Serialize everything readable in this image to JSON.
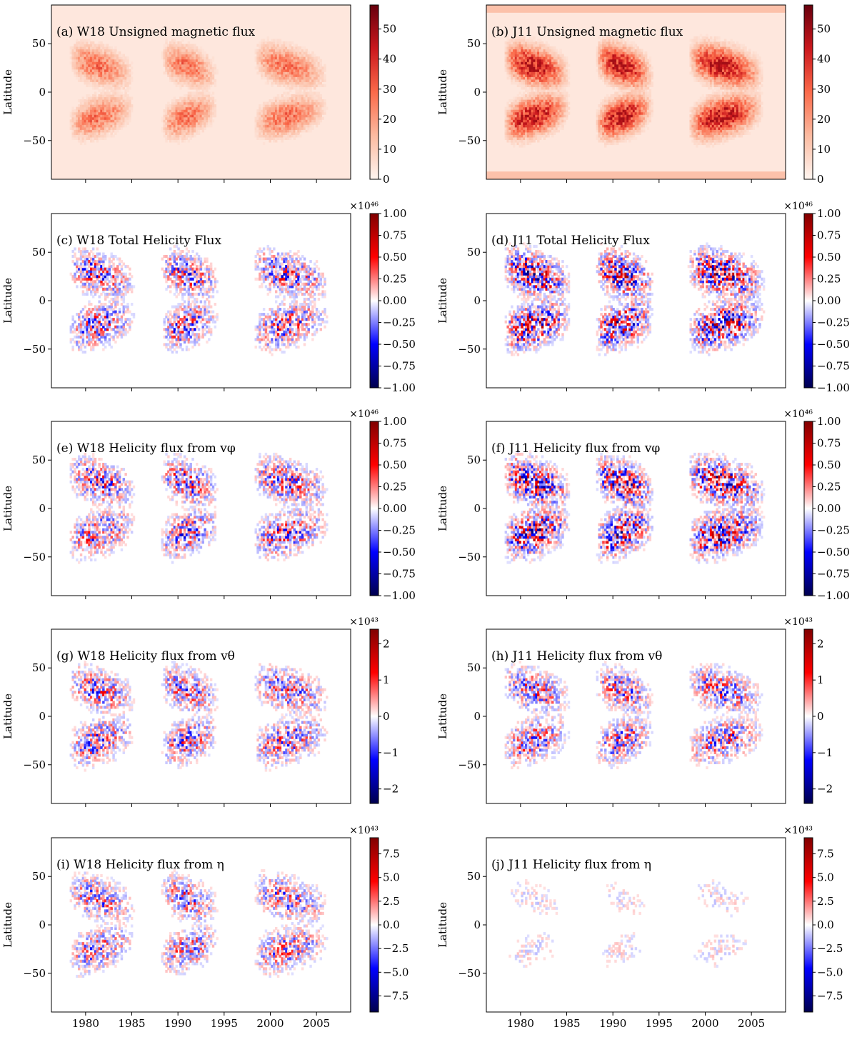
{
  "chart_data": {
    "type": "heatmap",
    "x_ticks": [
      1980,
      1985,
      1990,
      1995,
      2000,
      2005
    ],
    "xlim": [
      1976.3,
      2008.7
    ],
    "y_ticks": [
      50,
      0,
      -50
    ],
    "y_tick_labels": [
      "50",
      "0",
      "−50"
    ],
    "ylim": [
      -90,
      90
    ],
    "ylabel": "Latitude",
    "cycles": [
      {
        "start": 1978.0,
        "end": 1985.5
      },
      {
        "start": 1988.0,
        "end": 1994.5
      },
      {
        "start": 1998.0,
        "end": 2006.5
      }
    ],
    "panels": [
      {
        "id": "a",
        "model": "W18",
        "title": "(a) W18 Unsigned magnetic flux",
        "colormap": "reds",
        "clim": [
          0,
          58
        ],
        "multiplier": "",
        "cbar_ticks": [
          0,
          10,
          20,
          30,
          40,
          50
        ],
        "cbar_tick_labels": [
          "0",
          "10",
          "20",
          "30",
          "40",
          "50"
        ]
      },
      {
        "id": "b",
        "model": "J11",
        "title": "(b) J11 Unsigned magnetic flux",
        "colormap": "reds",
        "clim": [
          0,
          58
        ],
        "multiplier": "",
        "cbar_ticks": [
          0,
          10,
          20,
          30,
          40,
          50
        ],
        "cbar_tick_labels": [
          "0",
          "10",
          "20",
          "30",
          "40",
          "50"
        ]
      },
      {
        "id": "c",
        "model": "W18",
        "title": "(c) W18 Total Helicity Flux",
        "colormap": "seismic",
        "clim": [
          -1,
          1
        ],
        "multiplier": "×10⁴⁶",
        "cbar_ticks": [
          1,
          0.75,
          0.5,
          0.25,
          0,
          -0.25,
          -0.5,
          -0.75,
          -1
        ],
        "cbar_tick_labels": [
          "1.00",
          "0.75",
          "0.50",
          "0.25",
          "0.00",
          "−0.25",
          "−0.50",
          "−0.75",
          "−1.00"
        ]
      },
      {
        "id": "d",
        "model": "J11",
        "title": "(d) J11 Total Helicity Flux",
        "colormap": "seismic",
        "clim": [
          -1,
          1
        ],
        "multiplier": "×10⁴⁶",
        "cbar_ticks": [
          1,
          0.75,
          0.5,
          0.25,
          0,
          -0.25,
          -0.5,
          -0.75,
          -1
        ],
        "cbar_tick_labels": [
          "1.00",
          "0.75",
          "0.50",
          "0.25",
          "0.00",
          "−0.25",
          "−0.50",
          "−0.75",
          "−1.00"
        ]
      },
      {
        "id": "e",
        "model": "W18",
        "title": "(e) W18 Helicity flux from vφ",
        "colormap": "seismic",
        "clim": [
          -1,
          1
        ],
        "multiplier": "×10⁴⁶",
        "cbar_ticks": [
          1,
          0.75,
          0.5,
          0.25,
          0,
          -0.25,
          -0.5,
          -0.75,
          -1
        ],
        "cbar_tick_labels": [
          "1.00",
          "0.75",
          "0.50",
          "0.25",
          "0.00",
          "−0.25",
          "−0.50",
          "−0.75",
          "−1.00"
        ]
      },
      {
        "id": "f",
        "model": "J11",
        "title": "(f) J11 Helicity flux from vφ",
        "colormap": "seismic",
        "clim": [
          -1,
          1
        ],
        "multiplier": "×10⁴⁶",
        "cbar_ticks": [
          1,
          0.75,
          0.5,
          0.25,
          0,
          -0.25,
          -0.5,
          -0.75,
          -1
        ],
        "cbar_tick_labels": [
          "1.00",
          "0.75",
          "0.50",
          "0.25",
          "0.00",
          "−0.25",
          "−0.50",
          "−0.75",
          "−1.00"
        ]
      },
      {
        "id": "g",
        "model": "W18",
        "title": "(g) W18 Helicity flux from vθ",
        "colormap": "seismic",
        "clim": [
          -2.4,
          2.4
        ],
        "multiplier": "×10⁴³",
        "cbar_ticks": [
          2,
          1,
          0,
          -1,
          -2
        ],
        "cbar_tick_labels": [
          "2",
          "1",
          "0",
          "−1",
          "−2"
        ]
      },
      {
        "id": "h",
        "model": "J11",
        "title": "(h) J11 Helicity flux from vθ",
        "colormap": "seismic",
        "clim": [
          -2.4,
          2.4
        ],
        "multiplier": "×10⁴³",
        "cbar_ticks": [
          2,
          1,
          0,
          -1,
          -2
        ],
        "cbar_tick_labels": [
          "2",
          "1",
          "0",
          "−1",
          "−2"
        ]
      },
      {
        "id": "i",
        "model": "W18",
        "title": "(i) W18 Helicity flux from η",
        "colormap": "seismic",
        "clim": [
          -9.2,
          9.2
        ],
        "multiplier": "×10⁴³",
        "cbar_ticks": [
          7.5,
          5,
          2.5,
          0,
          -2.5,
          -5,
          -7.5
        ],
        "cbar_tick_labels": [
          "7.5",
          "5.0",
          "2.5",
          "0.0",
          "−2.5",
          "−5.0",
          "−7.5"
        ]
      },
      {
        "id": "j",
        "model": "J11",
        "title": "(j) J11 Helicity flux from η",
        "colormap": "seismic",
        "clim": [
          -9.2,
          9.2
        ],
        "multiplier": "×10⁴³",
        "cbar_ticks": [
          7.5,
          5,
          2.5,
          0,
          -2.5,
          -5,
          -7.5
        ],
        "cbar_tick_labels": [
          "7.5",
          "5.0",
          "2.5",
          "0.0",
          "−2.5",
          "−5.0",
          "−7.5"
        ]
      }
    ]
  }
}
